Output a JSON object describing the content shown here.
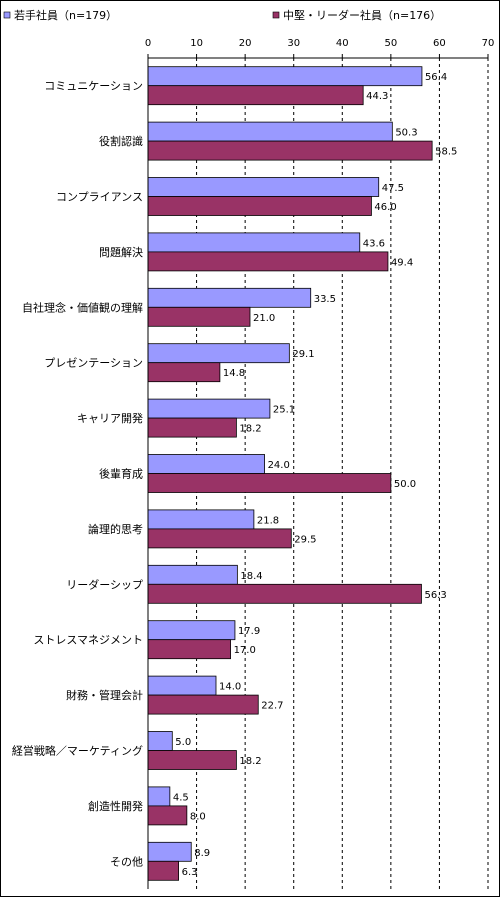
{
  "chart_data": {
    "type": "bar",
    "orientation": "horizontal",
    "categories": [
      "コミュニケーション",
      "役割認識",
      "コンプライアンス",
      "問題解決",
      "自社理念・価値観の理解",
      "プレゼンテーション",
      "キャリア開発",
      "後輩育成",
      "論理的思考",
      "リーダーシップ",
      "ストレスマネジメント",
      "財務・管理会計",
      "経営戦略／マーケティング",
      "創造性開発",
      "その他"
    ],
    "series": [
      {
        "name": "若手社員（n=179）",
        "color": "#9999ff",
        "values": [
          56.4,
          50.3,
          47.5,
          43.6,
          33.5,
          29.1,
          25.1,
          24.0,
          21.8,
          18.4,
          17.9,
          14.0,
          5.0,
          4.5,
          8.9
        ],
        "labels": [
          "56.4",
          "50.3",
          "47.5",
          "43.6",
          "33.5",
          "29.1",
          "25.1",
          "24.0",
          "21.8",
          "18.4",
          "17.9",
          "14.0",
          "5.0",
          "4.5",
          "8.9"
        ]
      },
      {
        "name": "中堅・リーダー社員（n=176）",
        "color": "#993366",
        "values": [
          44.3,
          58.5,
          46.0,
          49.4,
          21.0,
          14.8,
          18.2,
          50.0,
          29.5,
          56.3,
          17.0,
          22.7,
          18.2,
          8.0,
          6.3
        ],
        "labels": [
          "44.3",
          "58.5",
          "46.0",
          "49.4",
          "21.0",
          "14.8",
          "18.2",
          "50.0",
          "29.5",
          "56.3",
          "17.0",
          "22.7",
          "18.2",
          "8.0",
          "6.3"
        ]
      }
    ],
    "xlim": [
      0,
      70
    ],
    "ticks": [
      "0",
      "10",
      "20",
      "30",
      "40",
      "50",
      "60",
      "70"
    ],
    "tick_values": [
      0,
      10,
      20,
      30,
      40,
      50,
      60,
      70
    ],
    "grid": true,
    "legend": "top"
  }
}
